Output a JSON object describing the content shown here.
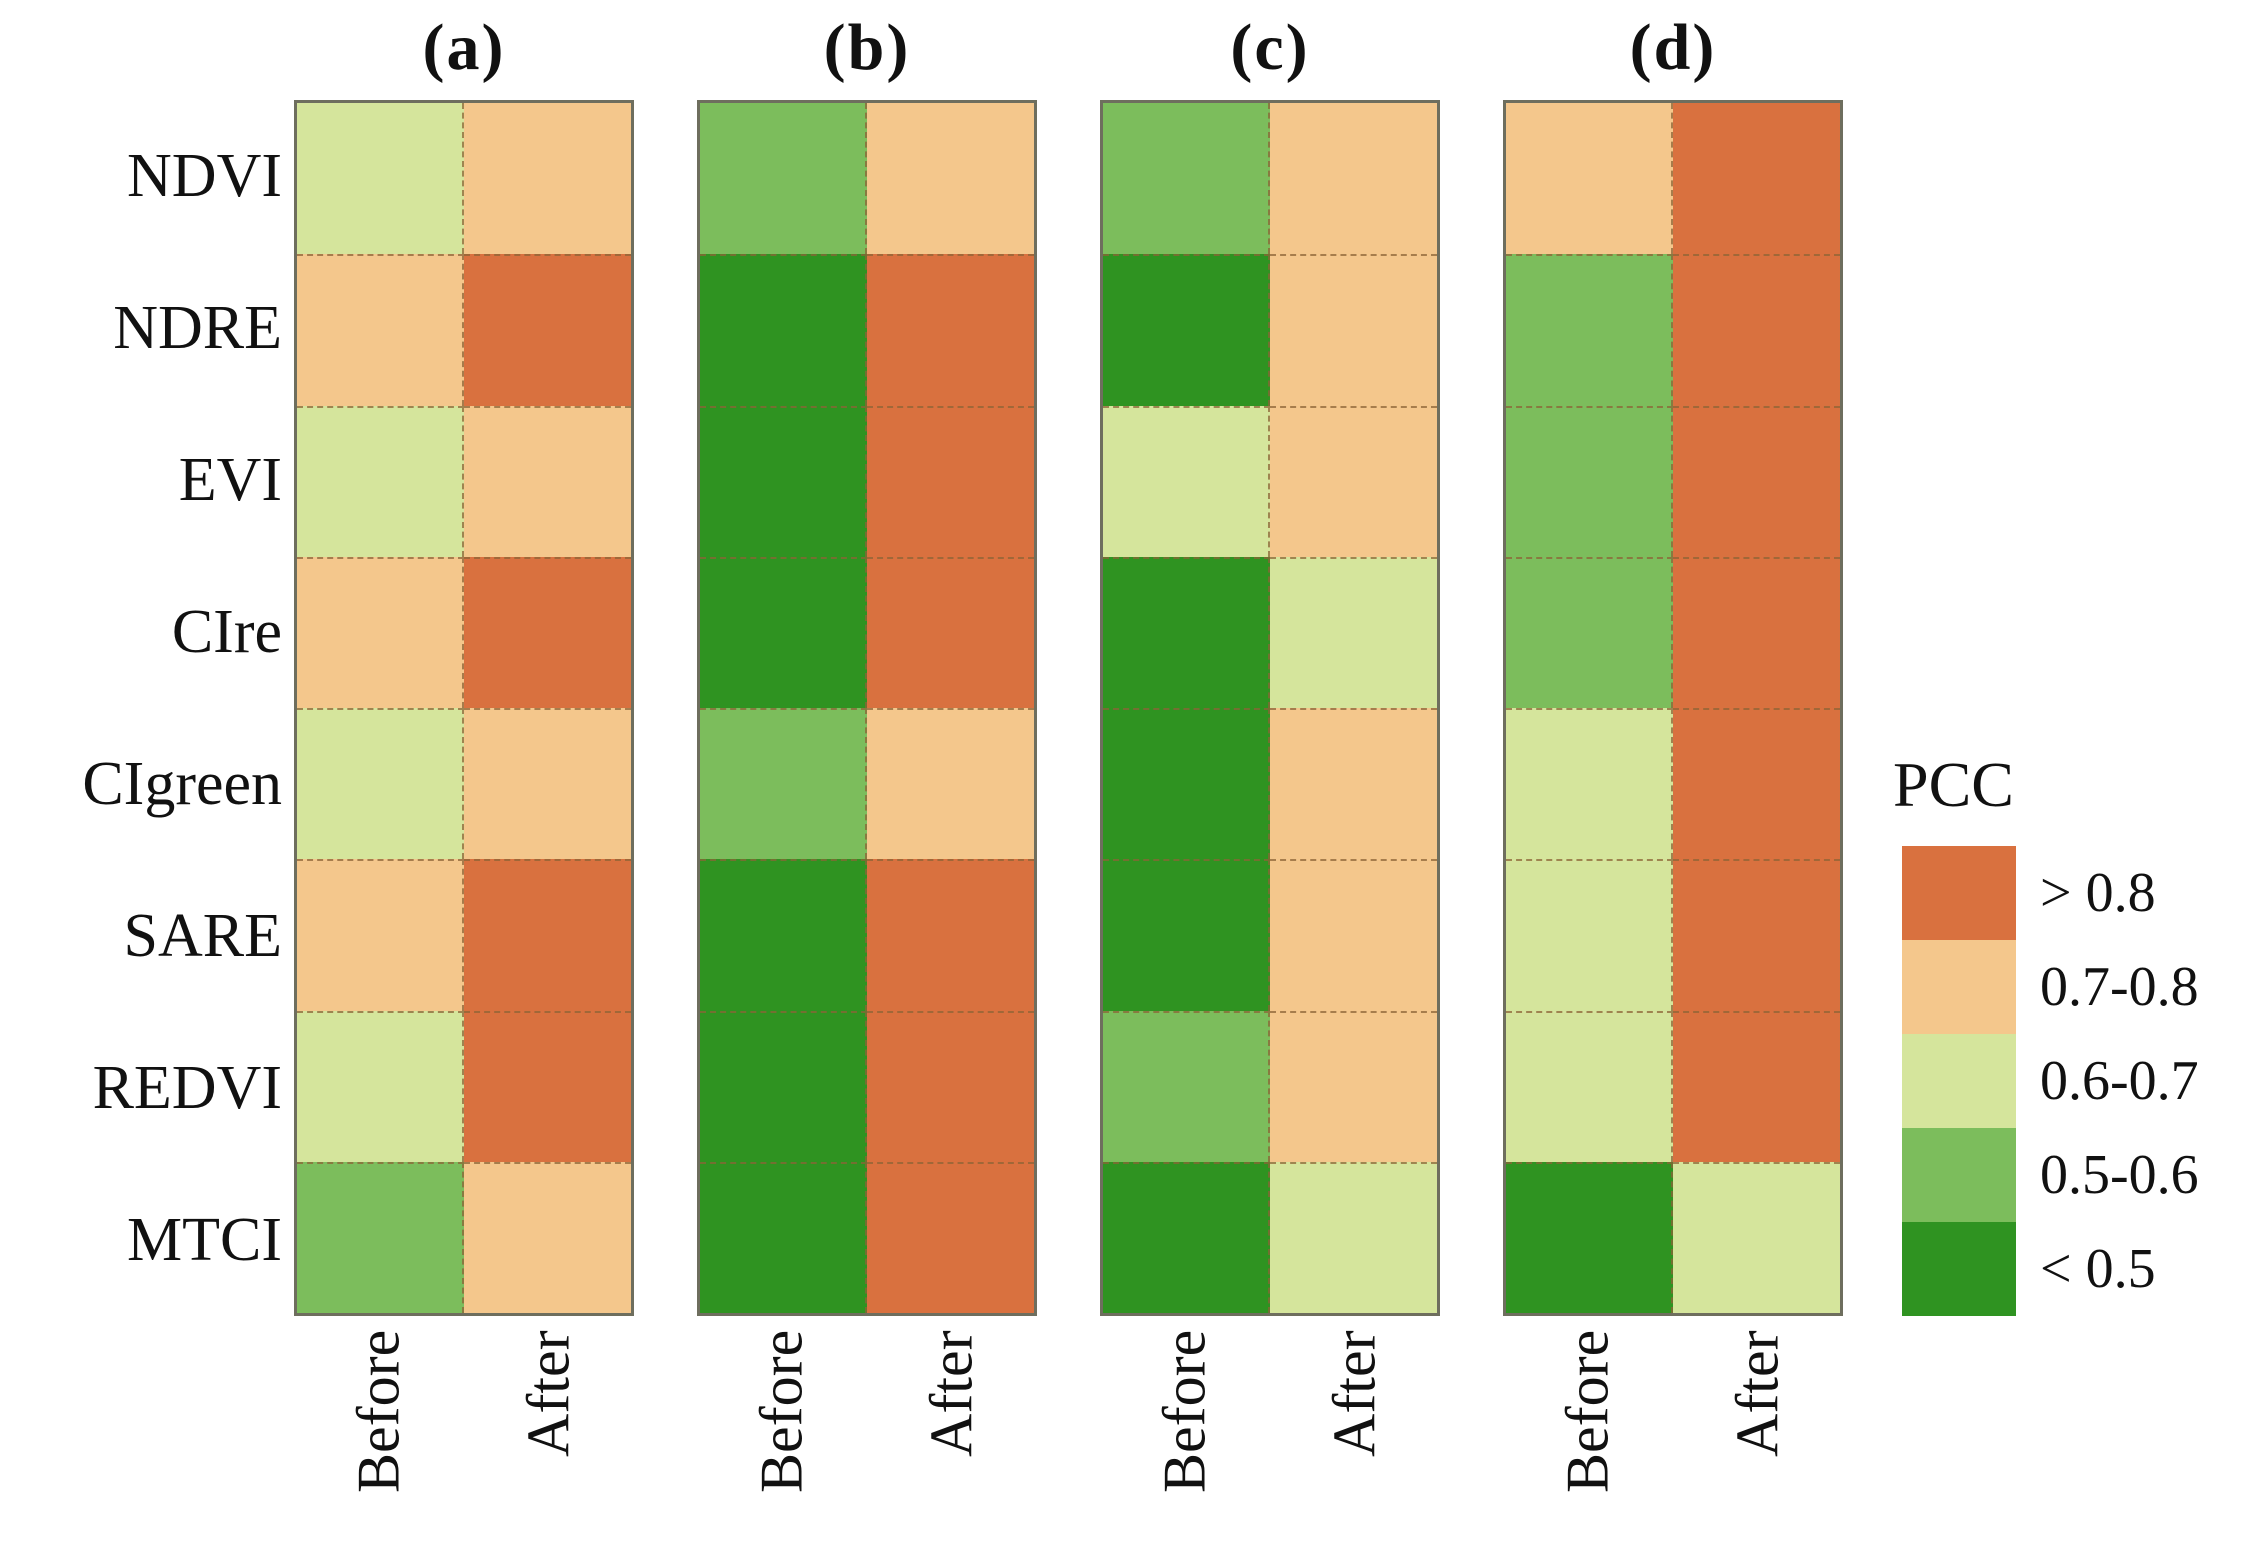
{
  "palette": {
    ">0.8": "#d9713f",
    "0.7-0.8": "#f4c78c",
    "0.6-0.7": "#d5e59c",
    "0.5-0.6": "#7cbd5c",
    "<0.5": "#2f9321"
  },
  "legend": {
    "title": "PCC",
    "entries": [
      {
        "label": "> 0.8",
        "key": ">0.8"
      },
      {
        "label": "0.7-0.8",
        "key": "0.7-0.8"
      },
      {
        "label": "0.6-0.7",
        "key": "0.6-0.7"
      },
      {
        "label": "0.5-0.6",
        "key": "0.5-0.6"
      },
      {
        "label": "< 0.5",
        "key": "<0.5"
      }
    ]
  },
  "chart_data": {
    "type": "heatmap",
    "title": "",
    "rows": [
      "NDVI",
      "NDRE",
      "EVI",
      "CIre",
      "CIgreen",
      "SARE",
      "REDVI",
      "MTCI"
    ],
    "columns": [
      "Before",
      "After"
    ],
    "value_legend": "PCC classes: >0.8, 0.7-0.8, 0.6-0.7, 0.5-0.6, <0.5",
    "legend_position": "right",
    "panels": [
      {
        "label": "(a)",
        "cells": [
          [
            "0.6-0.7",
            "0.7-0.8"
          ],
          [
            "0.7-0.8",
            ">0.8"
          ],
          [
            "0.6-0.7",
            "0.7-0.8"
          ],
          [
            "0.7-0.8",
            ">0.8"
          ],
          [
            "0.6-0.7",
            "0.7-0.8"
          ],
          [
            "0.7-0.8",
            ">0.8"
          ],
          [
            "0.6-0.7",
            ">0.8"
          ],
          [
            "0.5-0.6",
            "0.7-0.8"
          ]
        ]
      },
      {
        "label": "(b)",
        "cells": [
          [
            "0.5-0.6",
            "0.7-0.8"
          ],
          [
            "<0.5",
            ">0.8"
          ],
          [
            "<0.5",
            ">0.8"
          ],
          [
            "<0.5",
            ">0.8"
          ],
          [
            "0.5-0.6",
            "0.7-0.8"
          ],
          [
            "<0.5",
            ">0.8"
          ],
          [
            "<0.5",
            ">0.8"
          ],
          [
            "<0.5",
            ">0.8"
          ]
        ]
      },
      {
        "label": "(c)",
        "cells": [
          [
            "0.5-0.6",
            "0.7-0.8"
          ],
          [
            "<0.5",
            "0.7-0.8"
          ],
          [
            "0.6-0.7",
            "0.7-0.8"
          ],
          [
            "<0.5",
            "0.6-0.7"
          ],
          [
            "<0.5",
            "0.7-0.8"
          ],
          [
            "<0.5",
            "0.7-0.8"
          ],
          [
            "0.5-0.6",
            "0.7-0.8"
          ],
          [
            "<0.5",
            "0.6-0.7"
          ]
        ]
      },
      {
        "label": "(d)",
        "cells": [
          [
            "0.7-0.8",
            ">0.8"
          ],
          [
            "0.5-0.6",
            ">0.8"
          ],
          [
            "0.5-0.6",
            ">0.8"
          ],
          [
            "0.5-0.6",
            ">0.8"
          ],
          [
            "0.6-0.7",
            ">0.8"
          ],
          [
            "0.6-0.7",
            ">0.8"
          ],
          [
            "0.6-0.7",
            ">0.8"
          ],
          [
            "<0.5",
            "0.6-0.7"
          ]
        ]
      }
    ]
  }
}
